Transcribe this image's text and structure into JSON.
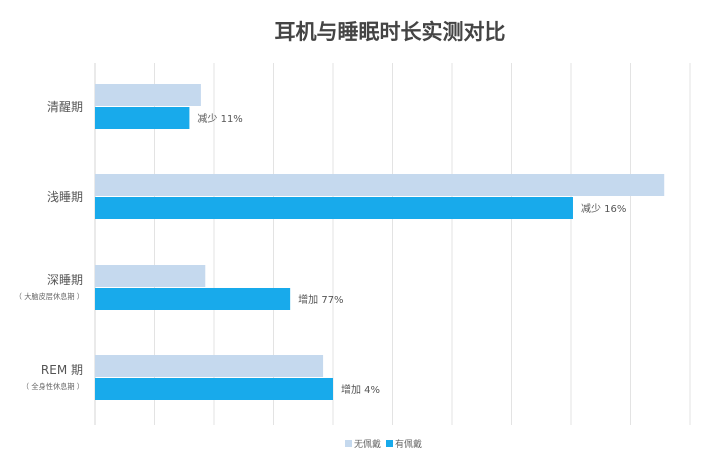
{
  "chart_data": {
    "type": "bar",
    "orientation": "horizontal",
    "title": "耳机与睡眠时长实测对比",
    "categories": [
      {
        "label": "清醒期",
        "sublabel": ""
      },
      {
        "label": "浅睡期",
        "sublabel": ""
      },
      {
        "label": "深睡期",
        "sublabel": "（ 大脑皮层休息期 ）"
      },
      {
        "label": "REM 期",
        "sublabel": "（ 全身性休息期 ）"
      }
    ],
    "series": [
      {
        "name": "无佩戴",
        "color": "#c5d9ee",
        "values": [
          26.7,
          143.5,
          27.8,
          57.5
        ]
      },
      {
        "name": "有佩戴",
        "color": "#18aaeb",
        "values": [
          23.8,
          120.5,
          49.2,
          60.0
        ]
      }
    ],
    "annotations": [
      "减少 11%",
      "减少 16%",
      "增加 77%",
      "增加 4%"
    ],
    "xlim": [
      0,
      150
    ],
    "grid": true,
    "legend_position": "bottom-center"
  }
}
